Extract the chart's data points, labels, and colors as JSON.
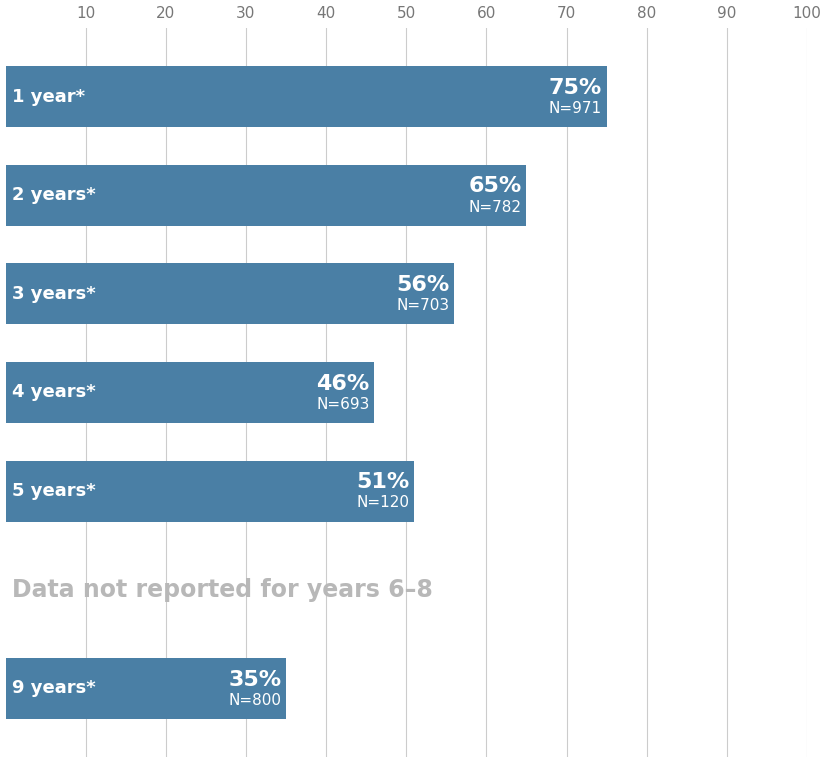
{
  "categories": [
    "1 year*",
    "2 years*",
    "3 years*",
    "4 years*",
    "5 years*",
    "9 years*"
  ],
  "values": [
    75,
    65,
    56,
    46,
    51,
    35
  ],
  "n_labels": [
    "N=971",
    "N=782",
    "N=703",
    "N=693",
    "N=120",
    "N=800"
  ],
  "pct_labels": [
    "75%",
    "65%",
    "56%",
    "46%",
    "51%",
    "35%"
  ],
  "bar_color": "#4a7fa5",
  "bar_height": 0.62,
  "xlim": [
    0,
    100
  ],
  "xticks": [
    10,
    20,
    30,
    40,
    50,
    60,
    70,
    80,
    90,
    100
  ],
  "background_color": "#ffffff",
  "annotation_text": "Data not reported for years 6–8",
  "annotation_color": "#b8b8b8",
  "annotation_fontsize": 17,
  "label_fontsize": 16,
  "n_fontsize": 11,
  "cat_fontsize": 13,
  "xtick_fontsize": 11,
  "y_positions": [
    7,
    6,
    5,
    4,
    3,
    1
  ],
  "figsize": [
    8.27,
    7.63
  ],
  "dpi": 100
}
